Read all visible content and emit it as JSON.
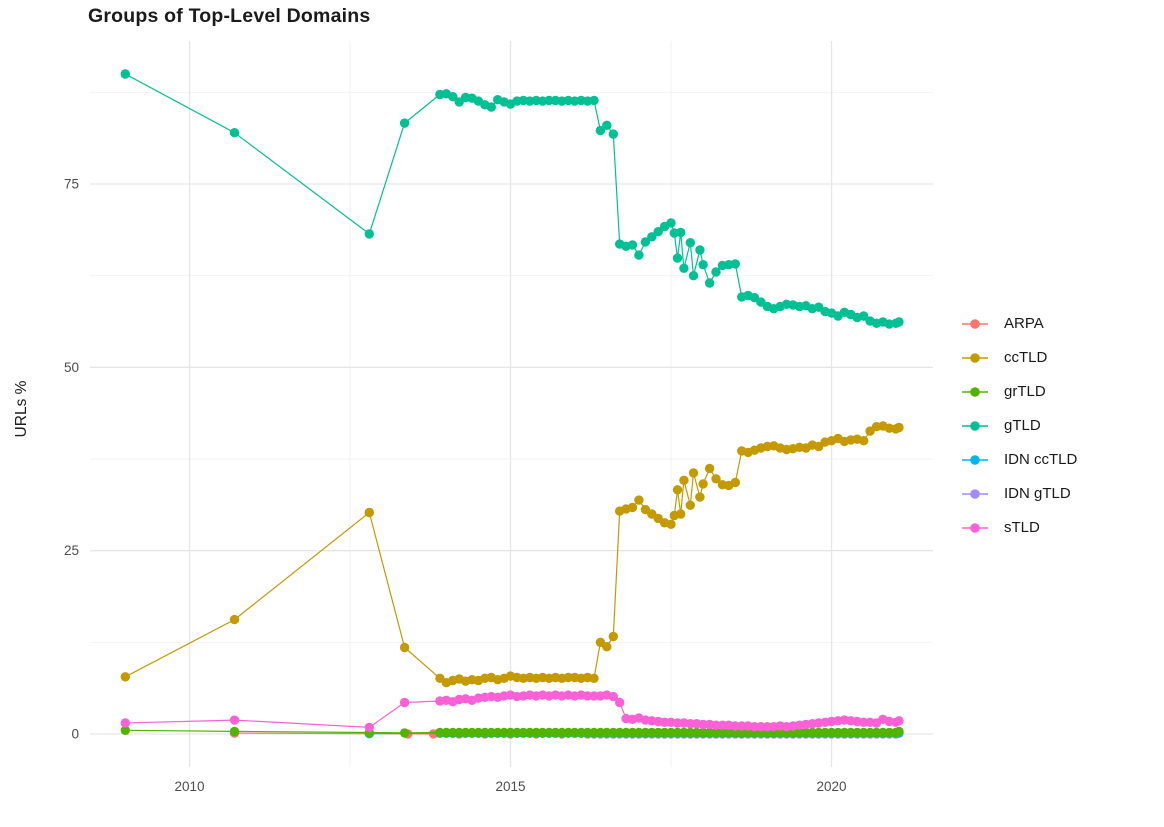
{
  "title": "Groups of Top-Level Domains",
  "colors": {
    "background": "#FFFFFF",
    "grid_major": "#E6E6E6",
    "grid_minor": "#F2F2F2",
    "tick_text": "#4D4D4D",
    "text": "#1A1A1A"
  },
  "chart_data": {
    "type": "line",
    "title": "Groups of Top-Level Domains",
    "xlabel": "",
    "ylabel": "URLs %",
    "grid": true,
    "legend_position": "right",
    "x_ticks": [
      2010,
      2015,
      2020
    ],
    "x_minor_ticks": [
      2012.5,
      2017.5
    ],
    "y_ticks": [
      0,
      25,
      50,
      75
    ],
    "y_minor_ticks": [
      12.5,
      37.5,
      62.5,
      87.5
    ],
    "xlim": [
      2008.45,
      2021.58
    ],
    "ylim": [
      -4.5,
      94.5
    ],
    "marker_radius": 4.7,
    "draw_order": [
      "ARPA",
      "IDN gTLD",
      "IDN ccTLD",
      "ccTLD",
      "grTLD",
      "gTLD",
      "sTLD"
    ],
    "series": [
      {
        "name": "ARPA",
        "color": "#F8766D",
        "points": [
          [
            2010.7,
            0.12
          ],
          [
            2012.8,
            0.05
          ]
        ],
        "runs": [
          {
            "from": 2013.4,
            "to": 2021.05,
            "step": 0.4,
            "value": 0.02
          }
        ]
      },
      {
        "name": "ccTLD",
        "color": "#C49A00",
        "points": [
          [
            2009.0,
            7.8
          ],
          [
            2010.7,
            15.6
          ],
          [
            2012.8,
            30.2
          ],
          [
            2013.35,
            11.8
          ],
          [
            2013.9,
            7.6
          ],
          [
            2014.0,
            7.0
          ],
          [
            2014.1,
            7.3
          ],
          [
            2014.2,
            7.5
          ],
          [
            2014.3,
            7.2
          ],
          [
            2014.4,
            7.4
          ],
          [
            2014.5,
            7.3
          ],
          [
            2014.6,
            7.6
          ],
          [
            2014.7,
            7.7
          ],
          [
            2014.8,
            7.4
          ],
          [
            2014.9,
            7.6
          ],
          [
            2015.0,
            7.9
          ],
          [
            2015.1,
            7.7
          ],
          [
            2015.2,
            7.6
          ],
          [
            2015.3,
            7.7
          ],
          [
            2015.4,
            7.6
          ],
          [
            2015.5,
            7.7
          ],
          [
            2015.6,
            7.6
          ],
          [
            2015.7,
            7.7
          ],
          [
            2015.8,
            7.6
          ],
          [
            2015.9,
            7.7
          ],
          [
            2016.0,
            7.7
          ],
          [
            2016.1,
            7.6
          ],
          [
            2016.2,
            7.7
          ],
          [
            2016.3,
            7.6
          ],
          [
            2016.4,
            12.5
          ],
          [
            2016.5,
            11.9
          ],
          [
            2016.6,
            13.3
          ],
          [
            2016.7,
            30.4
          ],
          [
            2016.8,
            30.7
          ],
          [
            2016.9,
            30.9
          ],
          [
            2017.0,
            31.9
          ],
          [
            2017.1,
            30.6
          ],
          [
            2017.2,
            30.0
          ],
          [
            2017.3,
            29.4
          ],
          [
            2017.4,
            28.8
          ],
          [
            2017.5,
            28.6
          ],
          [
            2017.55,
            29.8
          ],
          [
            2017.6,
            33.3
          ],
          [
            2017.65,
            30.0
          ],
          [
            2017.7,
            34.6
          ],
          [
            2017.8,
            31.2
          ],
          [
            2017.85,
            35.6
          ],
          [
            2017.95,
            32.3
          ],
          [
            2018.0,
            34.1
          ],
          [
            2018.1,
            36.2
          ],
          [
            2018.2,
            34.8
          ],
          [
            2018.3,
            34.0
          ],
          [
            2018.4,
            33.9
          ],
          [
            2018.5,
            34.3
          ],
          [
            2018.6,
            38.6
          ],
          [
            2018.7,
            38.4
          ],
          [
            2018.8,
            38.7
          ],
          [
            2018.9,
            39.0
          ],
          [
            2019.0,
            39.2
          ],
          [
            2019.1,
            39.3
          ],
          [
            2019.2,
            39.0
          ],
          [
            2019.3,
            38.8
          ],
          [
            2019.4,
            38.9
          ],
          [
            2019.5,
            39.1
          ],
          [
            2019.6,
            39.0
          ],
          [
            2019.7,
            39.4
          ],
          [
            2019.8,
            39.2
          ],
          [
            2019.9,
            39.8
          ],
          [
            2020.0,
            40.0
          ],
          [
            2020.1,
            40.3
          ],
          [
            2020.2,
            39.9
          ],
          [
            2020.3,
            40.1
          ],
          [
            2020.4,
            40.2
          ],
          [
            2020.5,
            40.0
          ],
          [
            2020.6,
            41.3
          ],
          [
            2020.7,
            41.9
          ],
          [
            2020.8,
            42.0
          ],
          [
            2020.9,
            41.7
          ],
          [
            2021.0,
            41.6
          ],
          [
            2021.05,
            41.8
          ]
        ]
      },
      {
        "name": "grTLD",
        "color": "#53B400",
        "points": [
          [
            2009.0,
            0.5
          ],
          [
            2010.7,
            0.35
          ],
          [
            2012.8,
            0.2
          ],
          [
            2013.35,
            0.15
          ],
          [
            2021.05,
            0.35
          ]
        ],
        "runs": [
          {
            "from": 2013.9,
            "to": 2021.0,
            "step": 0.1,
            "value": 0.2
          }
        ]
      },
      {
        "name": "gTLD",
        "color": "#00C094",
        "points": [
          [
            2009.0,
            90.0
          ],
          [
            2010.7,
            82.0
          ],
          [
            2012.8,
            68.2
          ],
          [
            2013.35,
            83.3
          ],
          [
            2013.9,
            87.2
          ],
          [
            2014.0,
            87.3
          ],
          [
            2014.1,
            86.9
          ],
          [
            2014.2,
            86.2
          ],
          [
            2014.3,
            86.8
          ],
          [
            2014.4,
            86.7
          ],
          [
            2014.5,
            86.3
          ],
          [
            2014.6,
            85.8
          ],
          [
            2014.7,
            85.5
          ],
          [
            2014.8,
            86.5
          ],
          [
            2014.9,
            86.2
          ],
          [
            2015.0,
            85.9
          ],
          [
            2015.1,
            86.3
          ],
          [
            2015.2,
            86.4
          ],
          [
            2015.3,
            86.3
          ],
          [
            2015.4,
            86.4
          ],
          [
            2015.5,
            86.3
          ],
          [
            2015.6,
            86.4
          ],
          [
            2015.7,
            86.4
          ],
          [
            2015.8,
            86.3
          ],
          [
            2015.9,
            86.4
          ],
          [
            2016.0,
            86.3
          ],
          [
            2016.1,
            86.4
          ],
          [
            2016.2,
            86.3
          ],
          [
            2016.3,
            86.4
          ],
          [
            2016.4,
            82.3
          ],
          [
            2016.5,
            83.0
          ],
          [
            2016.6,
            81.8
          ],
          [
            2016.7,
            66.8
          ],
          [
            2016.8,
            66.5
          ],
          [
            2016.9,
            66.7
          ],
          [
            2017.0,
            65.3
          ],
          [
            2017.1,
            67.1
          ],
          [
            2017.2,
            67.8
          ],
          [
            2017.3,
            68.5
          ],
          [
            2017.4,
            69.2
          ],
          [
            2017.5,
            69.7
          ],
          [
            2017.55,
            68.3
          ],
          [
            2017.6,
            64.9
          ],
          [
            2017.65,
            68.4
          ],
          [
            2017.7,
            63.5
          ],
          [
            2017.8,
            67.0
          ],
          [
            2017.85,
            62.5
          ],
          [
            2017.95,
            66.0
          ],
          [
            2018.0,
            64.0
          ],
          [
            2018.1,
            61.5
          ],
          [
            2018.2,
            63.0
          ],
          [
            2018.3,
            63.9
          ],
          [
            2018.4,
            64.0
          ],
          [
            2018.5,
            64.1
          ],
          [
            2018.6,
            59.6
          ],
          [
            2018.7,
            59.8
          ],
          [
            2018.8,
            59.5
          ],
          [
            2018.9,
            58.9
          ],
          [
            2019.0,
            58.3
          ],
          [
            2019.1,
            58.0
          ],
          [
            2019.2,
            58.3
          ],
          [
            2019.3,
            58.6
          ],
          [
            2019.4,
            58.5
          ],
          [
            2019.5,
            58.3
          ],
          [
            2019.6,
            58.4
          ],
          [
            2019.7,
            58.0
          ],
          [
            2019.8,
            58.2
          ],
          [
            2019.9,
            57.6
          ],
          [
            2020.0,
            57.4
          ],
          [
            2020.1,
            57.0
          ],
          [
            2020.2,
            57.5
          ],
          [
            2020.3,
            57.2
          ],
          [
            2020.4,
            56.8
          ],
          [
            2020.5,
            57.0
          ],
          [
            2020.6,
            56.3
          ],
          [
            2020.7,
            56.0
          ],
          [
            2020.8,
            56.2
          ],
          [
            2020.9,
            55.9
          ],
          [
            2021.0,
            56.0
          ],
          [
            2021.05,
            56.2
          ]
        ]
      },
      {
        "name": "IDN ccTLD",
        "color": "#00B6EB",
        "points": [
          [
            2012.8,
            0.05
          ],
          [
            2021.05,
            0.2
          ]
        ],
        "runs": [
          {
            "from": 2013.9,
            "to": 2021.0,
            "step": 0.1,
            "value": 0.1
          }
        ]
      },
      {
        "name": "IDN gTLD",
        "color": "#A58AFF",
        "points": [
          [
            2021.05,
            0.1
          ]
        ],
        "runs": [
          {
            "from": 2016.3,
            "to": 2021.0,
            "step": 0.1,
            "value": 0.02
          }
        ]
      },
      {
        "name": "sTLD",
        "color": "#FB61D7",
        "points": [
          [
            2009.0,
            1.5
          ],
          [
            2010.7,
            1.9
          ],
          [
            2012.8,
            0.9
          ],
          [
            2013.35,
            4.3
          ],
          [
            2013.9,
            4.5
          ],
          [
            2014.0,
            4.6
          ],
          [
            2014.1,
            4.4
          ],
          [
            2014.2,
            4.7
          ],
          [
            2014.3,
            4.8
          ],
          [
            2014.4,
            4.6
          ],
          [
            2014.5,
            4.9
          ],
          [
            2014.6,
            5.0
          ],
          [
            2014.7,
            5.1
          ],
          [
            2014.8,
            5.0
          ],
          [
            2014.9,
            5.2
          ],
          [
            2015.0,
            5.3
          ],
          [
            2015.1,
            5.1
          ],
          [
            2015.2,
            5.2
          ],
          [
            2015.3,
            5.3
          ],
          [
            2015.4,
            5.2
          ],
          [
            2015.5,
            5.3
          ],
          [
            2015.6,
            5.2
          ],
          [
            2015.7,
            5.3
          ],
          [
            2015.8,
            5.2
          ],
          [
            2015.9,
            5.3
          ],
          [
            2016.0,
            5.2
          ],
          [
            2016.1,
            5.3
          ],
          [
            2016.2,
            5.2
          ],
          [
            2016.3,
            5.2
          ],
          [
            2016.4,
            5.2
          ],
          [
            2016.5,
            5.3
          ],
          [
            2016.6,
            5.1
          ],
          [
            2016.7,
            4.3
          ],
          [
            2016.8,
            2.1
          ],
          [
            2016.9,
            2.0
          ],
          [
            2017.0,
            2.2
          ],
          [
            2017.1,
            1.9
          ],
          [
            2017.2,
            1.8
          ],
          [
            2017.3,
            1.7
          ],
          [
            2017.4,
            1.6
          ],
          [
            2017.5,
            1.6
          ],
          [
            2017.6,
            1.5
          ],
          [
            2017.7,
            1.5
          ],
          [
            2017.8,
            1.4
          ],
          [
            2017.9,
            1.4
          ],
          [
            2018.0,
            1.3
          ],
          [
            2018.1,
            1.3
          ],
          [
            2018.2,
            1.2
          ],
          [
            2018.3,
            1.2
          ],
          [
            2018.4,
            1.2
          ],
          [
            2018.5,
            1.1
          ],
          [
            2018.6,
            1.1
          ],
          [
            2018.7,
            1.1
          ],
          [
            2018.8,
            1.0
          ],
          [
            2018.9,
            1.0
          ],
          [
            2019.0,
            1.0
          ],
          [
            2019.1,
            1.0
          ],
          [
            2019.2,
            1.1
          ],
          [
            2019.3,
            1.0
          ],
          [
            2019.4,
            1.1
          ],
          [
            2019.5,
            1.2
          ],
          [
            2019.6,
            1.3
          ],
          [
            2019.7,
            1.4
          ],
          [
            2019.8,
            1.5
          ],
          [
            2019.9,
            1.6
          ],
          [
            2020.0,
            1.7
          ],
          [
            2020.1,
            1.8
          ],
          [
            2020.2,
            1.9
          ],
          [
            2020.3,
            1.8
          ],
          [
            2020.4,
            1.7
          ],
          [
            2020.5,
            1.6
          ],
          [
            2020.6,
            1.6
          ],
          [
            2020.7,
            1.5
          ],
          [
            2020.8,
            2.0
          ],
          [
            2020.9,
            1.7
          ],
          [
            2021.0,
            1.6
          ],
          [
            2021.05,
            1.8
          ]
        ]
      }
    ]
  }
}
